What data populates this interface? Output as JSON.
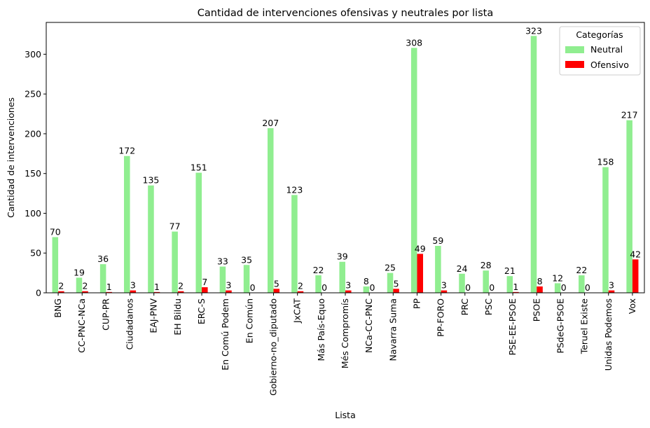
{
  "chart_data": {
    "type": "bar",
    "title": "Cantidad de intervenciones ofensivas y neutrales por lista",
    "xlabel": "Lista",
    "ylabel": "Cantidad de intervenciones",
    "ylim": [
      0,
      340
    ],
    "yticks": [
      0,
      50,
      100,
      150,
      200,
      250,
      300
    ],
    "grid": false,
    "legend": {
      "title": "Categorías",
      "position": "top-right"
    },
    "categories": [
      "BNG",
      "CC-PNC-NCa",
      "CUP-PR",
      "Ciudadanos",
      "EAJ-PNV",
      "EH Bildu",
      "ERC-S",
      "En Comú Podem",
      "En Común",
      "Gobierno-no_diputado",
      "JxCAT",
      "Más País-Equo",
      "Més Compromís",
      "NCa-CC-PNC",
      "Navarra Suma",
      "PP",
      "PP-FORO",
      "PRC",
      "PSC",
      "PSE-EE-PSOE",
      "PSOE",
      "PSdeG-PSOE",
      "Teruel Existe",
      "Unidas Podemos",
      "Vox"
    ],
    "series": [
      {
        "name": "Neutral",
        "color": "#90ee90",
        "values": [
          70,
          19,
          36,
          172,
          135,
          77,
          151,
          33,
          35,
          207,
          123,
          22,
          39,
          8,
          25,
          308,
          59,
          24,
          28,
          21,
          323,
          12,
          22,
          158,
          217
        ]
      },
      {
        "name": "Ofensivo",
        "color": "#ff0000",
        "values": [
          2,
          2,
          1,
          3,
          1,
          2,
          7,
          3,
          0,
          5,
          2,
          0,
          3,
          0,
          5,
          49,
          3,
          0,
          0,
          1,
          8,
          0,
          0,
          3,
          42
        ]
      }
    ]
  }
}
